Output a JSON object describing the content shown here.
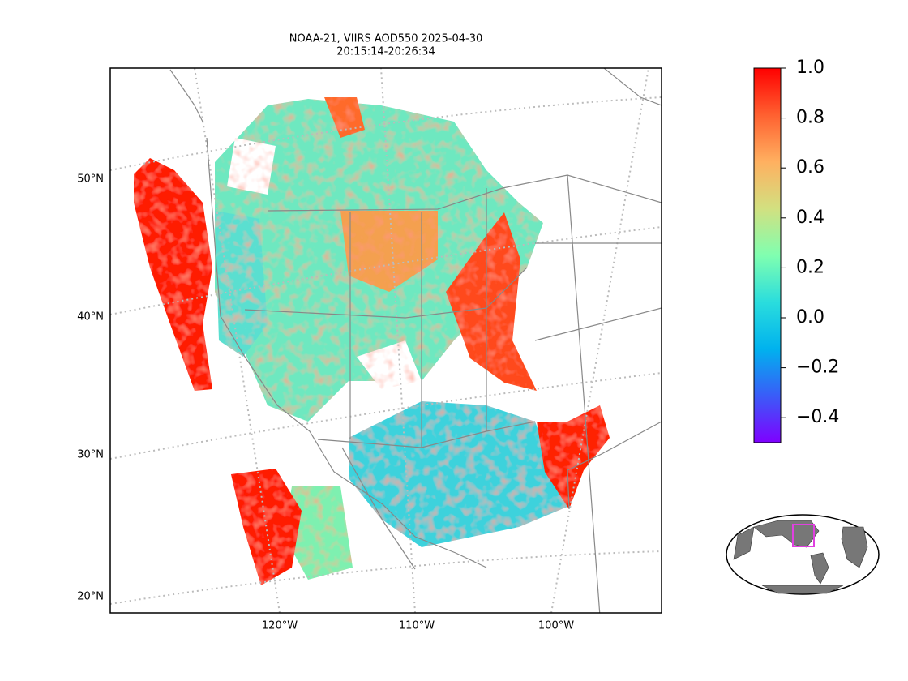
{
  "title": "NOAA-21, VIIRS AOD550 2025-04-30",
  "subtitle": "20:15:14-20:26:34",
  "lat_labels": [
    "50°N",
    "40°N",
    "30°N",
    "20°N"
  ],
  "lon_labels": [
    "120°W",
    "110°W",
    "100°W"
  ],
  "colorbar": {
    "range": [
      -0.5,
      1
    ],
    "ticks": [
      {
        "value": 1,
        "label": "1.0"
      },
      0.8,
      0.6,
      0.4,
      0.2,
      {
        "value": 0,
        "label": "0.0"
      },
      {
        "value": -0.2,
        "label": "−0.2"
      },
      {
        "value": -0.4,
        "label": "−0.4"
      }
    ],
    "colors": [
      "#7f00ff",
      "#3a5cf8",
      "#00b2ee",
      "#2adddd",
      "#80ffb0",
      "#d2e080",
      "#ffb060",
      "#ff6030",
      "#ff0000"
    ]
  }
}
